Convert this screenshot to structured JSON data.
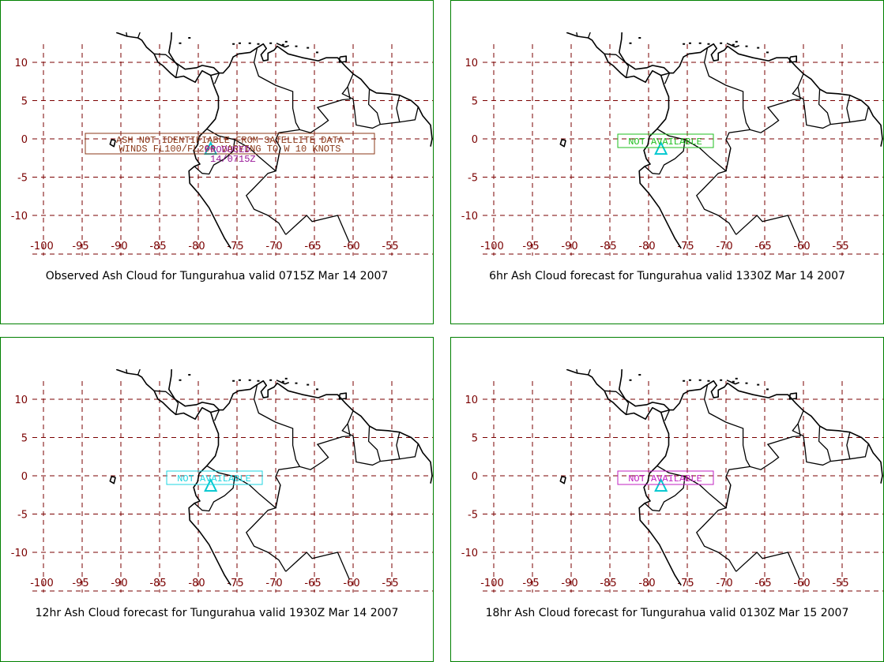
{
  "colors": {
    "panel_border": "#008000",
    "grid": "#7a0000",
    "volcano_marker": "#00c8d0",
    "observed_box": "#8b3a1a",
    "hr6_box": "#1fbf1f",
    "hr12_box": "#1fd4e0",
    "hr18_box": "#c020c0",
    "observed_label": "#9a1a9a"
  },
  "axes": {
    "x_ticks": [
      "-100",
      "-95",
      "-90",
      "-85",
      "-80",
      "-75",
      "-70",
      "-65",
      "-60",
      "-55"
    ],
    "y_ticks": [
      "10",
      "5",
      "0",
      "-5",
      "-10"
    ]
  },
  "panels": [
    {
      "id": "observed",
      "caption": "Observed Ash Cloud for Tungurahua valid 0715Z Mar 14 2007",
      "note_line1": "ASH NOT IDENTIFIABLE FROM SATELLITE DATA",
      "note_line2": "WINDS FL100/FL200 VARYING TO W 10 KNOTS",
      "obs_label_line1": "PRODUCED",
      "obs_label_line2": "14/0715Z",
      "marker_icon": "volcano-triangle-icon"
    },
    {
      "id": "hr6",
      "caption": "6hr Ash Cloud forecast for Tungurahua valid 1330Z Mar 14 2007",
      "note": "NOT AVAILABLE",
      "marker_icon": "volcano-triangle-icon"
    },
    {
      "id": "hr12",
      "caption": "12hr Ash Cloud forecast for Tungurahua valid 1930Z Mar 14 2007",
      "note": "NOT AVAILABLE",
      "marker_icon": "volcano-triangle-icon"
    },
    {
      "id": "hr18",
      "caption": "18hr Ash Cloud forecast for Tungurahua valid 0130Z Mar 15 2007",
      "note": "NOT AVAILABLE",
      "marker_icon": "volcano-triangle-icon"
    }
  ]
}
